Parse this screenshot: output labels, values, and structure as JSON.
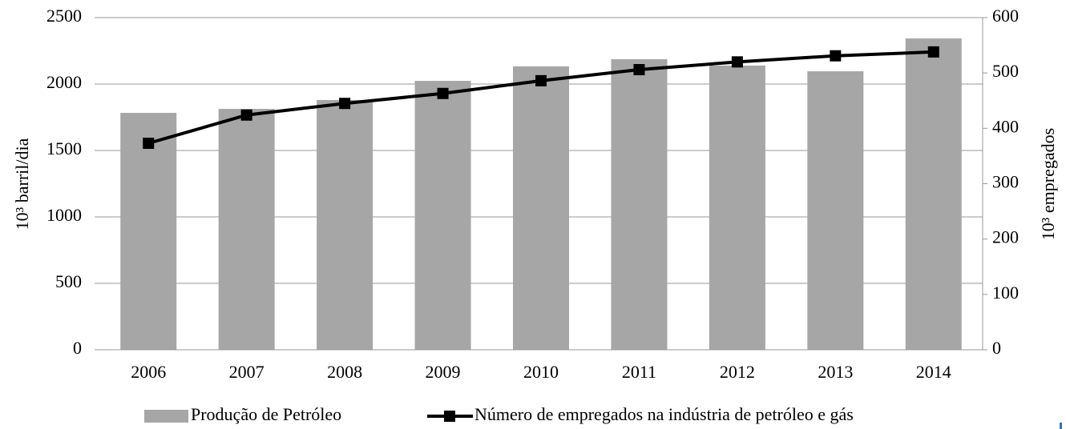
{
  "chart_data": {
    "type": "bar+line",
    "categories": [
      "2006",
      "2007",
      "2008",
      "2009",
      "2010",
      "2011",
      "2012",
      "2013",
      "2014"
    ],
    "series": [
      {
        "name": "Produção de Petróleo",
        "type": "bar",
        "color": "#a6a6a6",
        "values": [
          1783,
          1813,
          1880,
          2024,
          2133,
          2187,
          2139,
          2096,
          2343
        ]
      },
      {
        "name": "Número de empregados na indústria de petróleo e gás",
        "type": "line",
        "axis": "y2",
        "color": "#000000",
        "values": [
          373,
          424,
          445,
          463,
          486,
          506,
          520,
          531,
          538
        ]
      }
    ],
    "ylabel": "10³ barril/dia",
    "y2label": "10³  empregados",
    "ylim": [
      0,
      2500
    ],
    "yticks": [
      0,
      500,
      1000,
      1500,
      2000,
      2500
    ],
    "y2lim": [
      0,
      600
    ],
    "y2ticks": [
      0,
      100,
      200,
      300,
      400,
      500,
      600
    ],
    "grid": true,
    "legend": "bottom"
  }
}
